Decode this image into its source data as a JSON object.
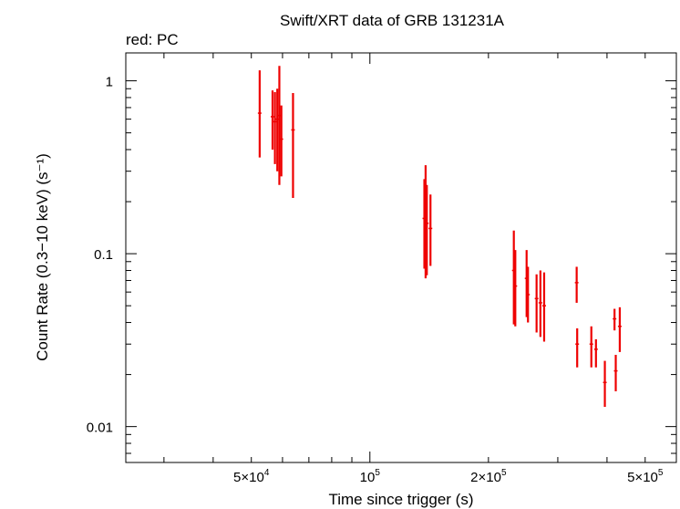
{
  "chart_data": {
    "type": "scatter",
    "title": "Swift/XRT data of GRB 131231A",
    "subtitle": "red: PC",
    "xlabel": "Time since trigger (s)",
    "ylabel": "Count Rate (0.3−10 keV) (s⁻¹)",
    "xscale": "log",
    "yscale": "log",
    "xlim": [
      24000,
      600000
    ],
    "ylim": [
      0.0062,
      1.45
    ],
    "grid": false,
    "x_tick_labels": [
      {
        "x": 50000,
        "base": "5×10",
        "exp": "4"
      },
      {
        "x": 100000,
        "base": "10",
        "exp": "5"
      },
      {
        "x": 200000,
        "base": "2×10",
        "exp": "5"
      },
      {
        "x": 500000,
        "base": "5×10",
        "exp": "5"
      }
    ],
    "y_tick_labels": [
      {
        "y": 1,
        "label": "1"
      },
      {
        "y": 0.1,
        "label": "0.1"
      },
      {
        "y": 0.01,
        "label": "0.01"
      }
    ],
    "series": [
      {
        "color": "#ee0000",
        "points": [
          {
            "x": 52500,
            "y": 0.65,
            "ylo": 0.36,
            "yhi": 1.15
          },
          {
            "x": 56600,
            "y": 0.62,
            "ylo": 0.4,
            "yhi": 0.88
          },
          {
            "x": 57400,
            "y": 0.58,
            "ylo": 0.33,
            "yhi": 0.86
          },
          {
            "x": 58200,
            "y": 0.6,
            "ylo": 0.3,
            "yhi": 0.9
          },
          {
            "x": 58900,
            "y": 0.63,
            "ylo": 0.25,
            "yhi": 1.22
          },
          {
            "x": 59600,
            "y": 0.46,
            "ylo": 0.28,
            "yhi": 0.72
          },
          {
            "x": 63800,
            "y": 0.52,
            "ylo": 0.21,
            "yhi": 0.85
          },
          {
            "x": 137500,
            "y": 0.16,
            "ylo": 0.082,
            "yhi": 0.27
          },
          {
            "x": 138500,
            "y": 0.18,
            "ylo": 0.072,
            "yhi": 0.325
          },
          {
            "x": 139500,
            "y": 0.15,
            "ylo": 0.075,
            "yhi": 0.25
          },
          {
            "x": 142500,
            "y": 0.14,
            "ylo": 0.085,
            "yhi": 0.22
          },
          {
            "x": 232000,
            "y": 0.08,
            "ylo": 0.039,
            "yhi": 0.136
          },
          {
            "x": 234000,
            "y": 0.065,
            "ylo": 0.038,
            "yhi": 0.105
          },
          {
            "x": 250000,
            "y": 0.072,
            "ylo": 0.043,
            "yhi": 0.105
          },
          {
            "x": 252000,
            "y": 0.058,
            "ylo": 0.04,
            "yhi": 0.084
          },
          {
            "x": 265000,
            "y": 0.055,
            "ylo": 0.035,
            "yhi": 0.076
          },
          {
            "x": 271000,
            "y": 0.052,
            "ylo": 0.033,
            "yhi": 0.08
          },
          {
            "x": 277000,
            "y": 0.05,
            "ylo": 0.031,
            "yhi": 0.078
          },
          {
            "x": 335000,
            "y": 0.068,
            "ylo": 0.052,
            "yhi": 0.084
          },
          {
            "x": 336000,
            "y": 0.03,
            "ylo": 0.022,
            "yhi": 0.037
          },
          {
            "x": 365000,
            "y": 0.03,
            "ylo": 0.022,
            "yhi": 0.038
          },
          {
            "x": 375000,
            "y": 0.028,
            "ylo": 0.022,
            "yhi": 0.032
          },
          {
            "x": 395000,
            "y": 0.018,
            "ylo": 0.013,
            "yhi": 0.024
          },
          {
            "x": 418000,
            "y": 0.042,
            "ylo": 0.036,
            "yhi": 0.048
          },
          {
            "x": 421000,
            "y": 0.021,
            "ylo": 0.016,
            "yhi": 0.026
          },
          {
            "x": 431000,
            "y": 0.038,
            "ylo": 0.027,
            "yhi": 0.049
          }
        ]
      }
    ]
  }
}
